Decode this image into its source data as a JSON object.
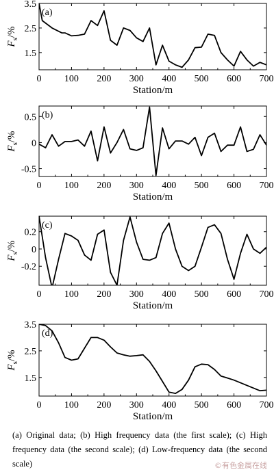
{
  "chart_data": [
    {
      "type": "line",
      "panel_label": "(a)",
      "xlabel": "Station/m",
      "ylabel_main": "F",
      "ylabel_sub": "s",
      "ylabel_unit": "/%",
      "xlim": [
        0,
        700
      ],
      "ylim": [
        0.8,
        3.5
      ],
      "xticks": [
        0,
        100,
        200,
        300,
        400,
        500,
        600,
        700
      ],
      "yticks": [
        1.5,
        2.5,
        3.5
      ],
      "ytick_labels": [
        "1.5",
        "2.5",
        "3.5"
      ],
      "x": [
        0,
        10,
        40,
        70,
        80,
        100,
        120,
        140,
        160,
        180,
        200,
        220,
        240,
        260,
        280,
        300,
        320,
        340,
        360,
        380,
        400,
        420,
        440,
        460,
        480,
        500,
        520,
        540,
        560,
        580,
        600,
        620,
        640,
        660,
        680,
        700
      ],
      "y": [
        3.5,
        2.8,
        2.5,
        2.3,
        2.3,
        2.18,
        2.2,
        2.25,
        2.8,
        2.6,
        3.2,
        2.0,
        1.8,
        2.5,
        2.4,
        2.1,
        1.95,
        2.5,
        1.0,
        1.8,
        1.15,
        1.0,
        0.9,
        1.2,
        1.7,
        1.72,
        2.25,
        2.2,
        1.5,
        1.2,
        0.95,
        1.55,
        1.2,
        0.95,
        1.1,
        1.0
      ]
    },
    {
      "type": "line",
      "panel_label": "(b)",
      "xlabel": "Station/m",
      "ylabel_main": "F",
      "ylabel_sub": "s",
      "ylabel_unit": "/%",
      "xlim": [
        0,
        700
      ],
      "ylim": [
        -0.65,
        0.7
      ],
      "xticks": [
        0,
        100,
        200,
        300,
        400,
        500,
        600,
        700
      ],
      "yticks": [
        -0.5,
        0,
        0.5
      ],
      "ytick_labels": [
        "-0.5",
        "0",
        "0.5"
      ],
      "x": [
        0,
        20,
        40,
        60,
        80,
        100,
        120,
        140,
        160,
        180,
        200,
        220,
        240,
        260,
        280,
        300,
        320,
        340,
        360,
        380,
        400,
        420,
        440,
        460,
        480,
        500,
        520,
        540,
        560,
        580,
        600,
        620,
        640,
        660,
        680,
        700
      ],
      "y": [
        -0.03,
        -0.1,
        0.15,
        -0.07,
        0.02,
        0.02,
        0.05,
        -0.07,
        0.22,
        -0.35,
        0.3,
        -0.2,
        0.0,
        0.25,
        -0.12,
        -0.15,
        -0.1,
        0.68,
        -0.63,
        0.28,
        -0.12,
        0.03,
        0.03,
        -0.03,
        0.1,
        -0.25,
        0.1,
        0.18,
        -0.17,
        -0.05,
        -0.05,
        0.3,
        -0.17,
        -0.13,
        0.15,
        -0.05
      ]
    },
    {
      "type": "line",
      "panel_label": "(c)",
      "xlabel": "Station/m",
      "ylabel_main": "F",
      "ylabel_sub": "s",
      "ylabel_unit": "/%",
      "xlim": [
        0,
        700
      ],
      "ylim": [
        -0.42,
        0.38
      ],
      "xticks": [
        0,
        100,
        200,
        300,
        400,
        500,
        600,
        700
      ],
      "yticks": [
        -0.2,
        0,
        0.2
      ],
      "ytick_labels": [
        "-0.2",
        "0",
        "0.2"
      ],
      "x": [
        0,
        20,
        40,
        60,
        80,
        100,
        120,
        140,
        160,
        180,
        200,
        220,
        240,
        260,
        280,
        300,
        320,
        340,
        360,
        380,
        400,
        420,
        440,
        460,
        480,
        500,
        520,
        540,
        560,
        580,
        600,
        620,
        640,
        660,
        680,
        700
      ],
      "y": [
        0.38,
        -0.1,
        -0.45,
        -0.12,
        0.18,
        0.15,
        0.1,
        -0.07,
        -0.13,
        0.17,
        0.22,
        -0.27,
        -0.42,
        0.1,
        0.37,
        0.08,
        -0.12,
        -0.13,
        -0.1,
        0.18,
        0.3,
        0.0,
        -0.2,
        -0.25,
        -0.2,
        0.02,
        0.25,
        0.28,
        0.18,
        -0.12,
        -0.35,
        -0.05,
        0.17,
        0.0,
        -0.05,
        0.02
      ]
    },
    {
      "type": "line",
      "panel_label": "(d)",
      "xlabel": "Station/m",
      "ylabel_main": "F",
      "ylabel_sub": "s",
      "ylabel_unit": "/%",
      "xlim": [
        0,
        700
      ],
      "ylim": [
        0.8,
        3.5
      ],
      "xticks": [
        0,
        100,
        200,
        300,
        400,
        500,
        600,
        700
      ],
      "yticks": [
        1.5,
        2.5,
        3.5
      ],
      "ytick_labels": [
        "1.5",
        "2.5",
        "3.5"
      ],
      "x": [
        0,
        20,
        40,
        60,
        80,
        100,
        120,
        140,
        160,
        180,
        200,
        220,
        240,
        260,
        280,
        300,
        320,
        340,
        360,
        380,
        400,
        420,
        440,
        460,
        480,
        500,
        520,
        540,
        560,
        580,
        600,
        620,
        640,
        660,
        680,
        700
      ],
      "y": [
        3.5,
        3.45,
        3.25,
        2.8,
        2.25,
        2.15,
        2.2,
        2.6,
        3.0,
        3.0,
        2.9,
        2.65,
        2.42,
        2.35,
        2.3,
        2.32,
        2.35,
        2.1,
        1.75,
        1.35,
        0.95,
        0.9,
        1.05,
        1.4,
        1.9,
        2.0,
        1.98,
        1.8,
        1.55,
        1.48,
        1.4,
        1.3,
        1.2,
        1.1,
        1.0,
        1.02
      ]
    }
  ],
  "caption": "(a) Original data; (b) High frequency data (the first scale); (c) High frequency data (the second scale); (d) Low-frequency data (the second scale)",
  "watermark": "©有色金属在线"
}
